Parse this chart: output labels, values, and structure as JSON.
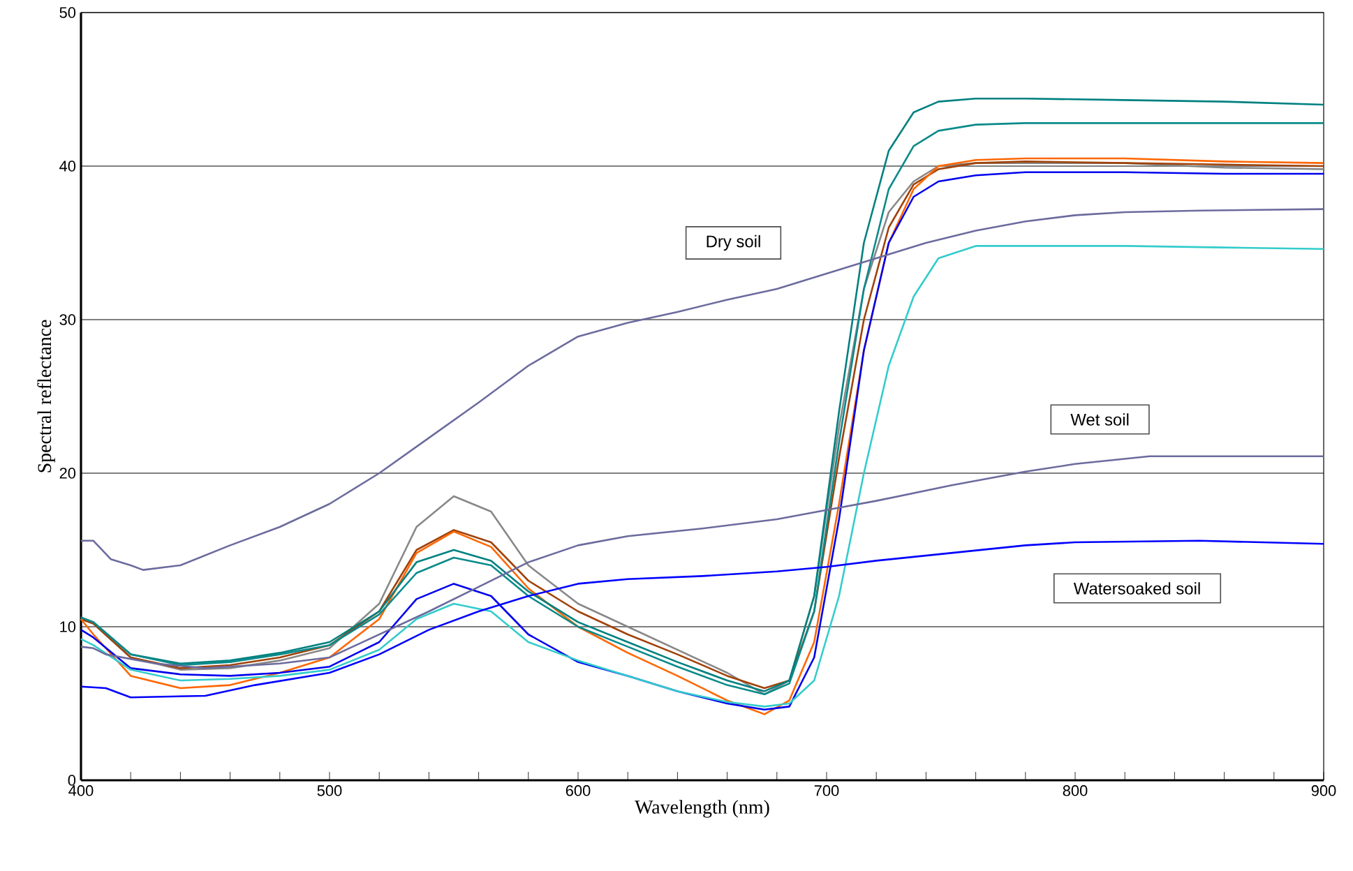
{
  "chart_data": {
    "type": "line",
    "xlabel": "Wavelength (nm)",
    "ylabel": "Spectral reflectance",
    "xlim": [
      400,
      900
    ],
    "ylim": [
      0,
      50
    ],
    "xticks": [
      400,
      500,
      600,
      700,
      800,
      900
    ],
    "yticks": [
      0,
      10,
      20,
      30,
      40,
      50
    ],
    "grid": "y",
    "marker": "none",
    "line_style": "solid",
    "x": [
      400,
      405,
      420,
      440,
      460,
      480,
      500,
      520,
      535,
      550,
      565,
      580,
      600,
      620,
      640,
      660,
      675,
      685,
      695,
      705,
      715,
      725,
      735,
      745,
      760,
      780,
      820,
      860,
      900
    ],
    "series": [
      {
        "color": "#888888",
        "values": [
          10.5,
          10.2,
          8.0,
          7.2,
          7.3,
          7.8,
          8.6,
          11.5,
          16.5,
          18.5,
          17.5,
          14.0,
          11.5,
          10.0,
          8.5,
          7.0,
          5.6,
          6.5,
          12,
          23,
          32,
          37,
          39,
          40,
          40.2,
          40.2,
          40.2,
          39.9,
          39.8
        ]
      },
      {
        "color": "#a0420a",
        "values": [
          10.5,
          10.2,
          8.0,
          7.3,
          7.5,
          8.0,
          8.8,
          11.0,
          15.0,
          16.3,
          15.5,
          13.0,
          11.0,
          9.5,
          8.2,
          6.8,
          6.0,
          6.5,
          11,
          21,
          30,
          36,
          38.8,
          39.8,
          40.2,
          40.3,
          40.2,
          40.1,
          40.0
        ]
      },
      {
        "color": "#ff6600",
        "values": [
          10.5,
          9.5,
          6.8,
          6.0,
          6.2,
          7.0,
          8.0,
          10.5,
          14.8,
          16.2,
          15.2,
          12.5,
          10.0,
          8.3,
          6.8,
          5.2,
          4.3,
          5.2,
          9,
          18,
          28,
          35,
          38.5,
          40,
          40.4,
          40.5,
          40.5,
          40.3,
          40.2
        ]
      },
      {
        "color": "#008080",
        "values": [
          10.6,
          10.3,
          8.2,
          7.6,
          7.8,
          8.3,
          9.0,
          11.0,
          14.2,
          15.0,
          14.3,
          12.3,
          10.3,
          9.0,
          7.7,
          6.5,
          5.8,
          6.5,
          12,
          24,
          35,
          41,
          43.5,
          44.2,
          44.4,
          44.4,
          44.3,
          44.2,
          44.0
        ]
      },
      {
        "color": "#0a8a8a",
        "values": [
          10.6,
          10.3,
          8.2,
          7.5,
          7.7,
          8.2,
          8.8,
          10.8,
          13.5,
          14.5,
          14.0,
          12.0,
          10.0,
          8.7,
          7.4,
          6.2,
          5.6,
          6.3,
          11,
          22,
          32,
          38.5,
          41.3,
          42.3,
          42.7,
          42.8,
          42.8,
          42.8,
          42.8
        ]
      },
      {
        "color": "#0000ee",
        "values": [
          9.8,
          9.3,
          7.3,
          6.9,
          6.8,
          7.0,
          7.4,
          9.0,
          11.8,
          12.8,
          12.0,
          9.5,
          7.7,
          6.8,
          5.8,
          5.0,
          4.6,
          4.8,
          8,
          17,
          28,
          35,
          38,
          39,
          39.4,
          39.6,
          39.6,
          39.5,
          39.5
        ]
      },
      {
        "color": "#33cccc",
        "values": [
          9.2,
          8.8,
          7.2,
          6.5,
          6.6,
          6.8,
          7.2,
          8.5,
          10.5,
          11.5,
          11.0,
          9.0,
          7.8,
          6.8,
          5.8,
          5.1,
          4.8,
          5.0,
          6.5,
          12,
          20,
          27,
          31.5,
          34,
          34.8,
          34.8,
          34.8,
          34.7,
          34.6
        ]
      },
      {
        "color": "#6b6b9e",
        "x": [
          400,
          405,
          412,
          420,
          425,
          440,
          460,
          480,
          500,
          520,
          540,
          560,
          580,
          600,
          620,
          640,
          660,
          680,
          700,
          720,
          740,
          760,
          780,
          800,
          820,
          850,
          900
        ],
        "values": [
          15.6,
          15.6,
          14.4,
          14.0,
          13.7,
          14.0,
          15.3,
          16.5,
          18.0,
          20.0,
          22.3,
          24.6,
          27.0,
          28.9,
          29.8,
          30.5,
          31.3,
          32.0,
          33.0,
          34.0,
          35.0,
          35.8,
          36.4,
          36.8,
          37.0,
          37.1,
          37.2
        ]
      },
      {
        "color": "#6b6b9e",
        "x": [
          400,
          405,
          410,
          430,
          450,
          480,
          500,
          520,
          540,
          560,
          580,
          600,
          620,
          650,
          680,
          700,
          720,
          750,
          780,
          800,
          830,
          900
        ],
        "values": [
          8.7,
          8.6,
          8.2,
          7.6,
          7.3,
          7.6,
          8.0,
          9.5,
          11.0,
          12.6,
          14.2,
          15.3,
          15.9,
          16.4,
          17.0,
          17.6,
          18.2,
          19.2,
          20.1,
          20.6,
          21.1,
          21.1
        ]
      },
      {
        "color": "#0000ff",
        "x": [
          400,
          410,
          420,
          450,
          470,
          500,
          520,
          540,
          560,
          580,
          600,
          620,
          650,
          680,
          700,
          720,
          750,
          780,
          800,
          850,
          900
        ],
        "values": [
          6.1,
          6.0,
          5.4,
          5.5,
          6.2,
          7.0,
          8.2,
          9.8,
          11.0,
          12.0,
          12.8,
          13.1,
          13.3,
          13.6,
          13.9,
          14.3,
          14.8,
          15.3,
          15.5,
          15.6,
          15.4
        ]
      }
    ],
    "annotations": [
      "Dry soil",
      "Wet soil",
      "Watersoaked soil"
    ]
  }
}
